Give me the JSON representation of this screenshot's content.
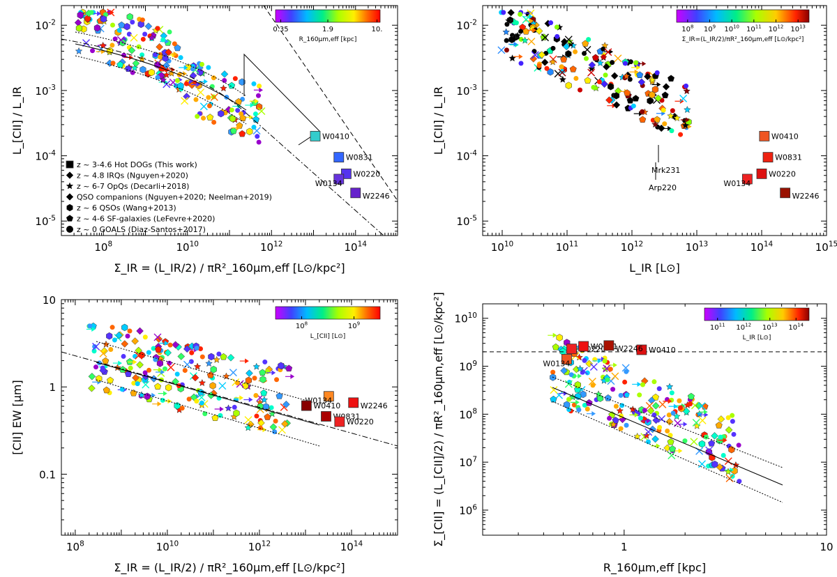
{
  "chart_data": [
    {
      "type": "scatter",
      "panel": "top-left",
      "xlabel": "Σ_IR = (L_IR/2) / πR²_160μm,eff [L⊙/kpc²]",
      "ylabel": "L_[CII] / L_IR",
      "xscale": "log",
      "yscale": "log",
      "xlim": [
        10000000.0,
        1000000000000000.0
      ],
      "ylim": [
        6e-06,
        0.02
      ],
      "xticks": [
        "10^8",
        "10^10",
        "10^12",
        "10^14"
      ],
      "yticks": [
        "10^-5",
        "10^-4",
        "10^-3",
        "10^-2"
      ],
      "colorbar": {
        "label": "R_160μm,eff [kpc]",
        "ticks": [
          "0.35",
          "1.9",
          "10."
        ]
      },
      "legend": [
        {
          "symbol": "square",
          "label": "z ~ 3-4.6 Hot DOGs (This work)"
        },
        {
          "symbol": "diamond",
          "label": "z ~ 4.8 IRQs (Nguyen+2020)"
        },
        {
          "symbol": "star",
          "label": "z ~ 6-7 OpQs (Decarli+2018)"
        },
        {
          "symbol": "open-diamond-star",
          "label": "QSO companions (Nguyen+2020; Neelman+2019)"
        },
        {
          "symbol": "hexagon",
          "label": "z ~ 6 QSOs (Wang+2013)"
        },
        {
          "symbol": "pentagon",
          "label": "z ~ 4-6 SF-galaxies (LeFevre+2020)"
        },
        {
          "symbol": "circle",
          "label": "z ~ 0 GOALS (Diaz-Santos+2017)"
        }
      ],
      "hot_dogs": [
        {
          "name": "W0410",
          "x": 11000000000000.0,
          "y": 0.0002,
          "color": "#33cccc"
        },
        {
          "name": "W0831",
          "x": 40000000000000.0,
          "y": 9.5e-05,
          "color": "#3366ff"
        },
        {
          "name": "W0220",
          "x": 60000000000000.0,
          "y": 5.3e-05,
          "color": "#5533ee"
        },
        {
          "name": "W0134",
          "x": 40000000000000.0,
          "y": 4.4e-05,
          "color": "#6633dd"
        },
        {
          "name": "W2246",
          "x": 100000000000000.0,
          "y": 2.7e-05,
          "color": "#6622cc"
        }
      ]
    },
    {
      "type": "scatter",
      "panel": "top-right",
      "xlabel": "L_IR [L⊙]",
      "ylabel": "L_[CII] / L_IR",
      "xscale": "log",
      "yscale": "log",
      "xlim": [
        5000000000.0,
        1000000000000000.0
      ],
      "ylim": [
        6e-06,
        0.02
      ],
      "xticks": [
        "10^10",
        "10^11",
        "10^12",
        "10^13",
        "10^14",
        "10^15"
      ],
      "yticks": [
        "10^-5",
        "10^-4",
        "10^-3",
        "10^-2"
      ],
      "colorbar": {
        "label": "Σ_IR=(L_IR/2)/πR²_160μm,eff [L⊙/kpc²]",
        "ticks": [
          "10^8",
          "10^9",
          "10^10",
          "10^11",
          "10^12",
          "10^13"
        ]
      },
      "annotations": [
        "Mrk231",
        "Arp220"
      ],
      "hot_dogs": [
        {
          "name": "W0410",
          "x": 110000000000000.0,
          "y": 0.0002,
          "color": "#ee5522"
        },
        {
          "name": "W0831",
          "x": 125000000000000.0,
          "y": 9.5e-05,
          "color": "#ee2211"
        },
        {
          "name": "W0220",
          "x": 100000000000000.0,
          "y": 5.3e-05,
          "color": "#dd1111"
        },
        {
          "name": "W0134",
          "x": 60000000000000.0,
          "y": 4.4e-05,
          "color": "#ee2222"
        },
        {
          "name": "W2246",
          "x": 230000000000000.0,
          "y": 2.7e-05,
          "color": "#991100"
        }
      ]
    },
    {
      "type": "scatter",
      "panel": "bottom-left",
      "xlabel": "Σ_IR = (L_IR/2) / πR²_160μm,eff [L⊙/kpc²]",
      "ylabel": "[CII] EW [μm]",
      "xscale": "log",
      "yscale": "log",
      "xlim": [
        50000000.0,
        1000000000000000.0
      ],
      "ylim": [
        0.02,
        10
      ],
      "xticks": [
        "10^8",
        "10^10",
        "10^12",
        "10^14"
      ],
      "yticks": [
        "0.1",
        "1",
        "10"
      ],
      "colorbar": {
        "label": "L_[CII] [L⊙]",
        "ticks": [
          "10^8",
          "10^9"
        ]
      },
      "hot_dogs": [
        {
          "name": "W0134",
          "x": 32000000000000.0,
          "y": 0.78,
          "color": "#ff8822"
        },
        {
          "name": "W2246",
          "x": 110000000000000.0,
          "y": 0.66,
          "color": "#ee1111"
        },
        {
          "name": "W0410",
          "x": 10500000000000.0,
          "y": 0.61,
          "color": "#880000"
        },
        {
          "name": "W0831",
          "x": 28000000000000.0,
          "y": 0.46,
          "color": "#aa0000"
        },
        {
          "name": "W0220",
          "x": 55000000000000.0,
          "y": 0.4,
          "color": "#ee2222"
        }
      ]
    },
    {
      "type": "scatter",
      "panel": "bottom-right",
      "xlabel": "R_160μm,eff [kpc]",
      "ylabel": "Σ_[CII] = (L_[CII]/2) / πR²_160μm,eff [L⊙/kpc²]",
      "xscale": "log",
      "yscale": "log",
      "xlim": [
        0.2,
        10
      ],
      "ylim": [
        300000.0,
        20000000000.0
      ],
      "xticks": [
        "1",
        "10"
      ],
      "yticks": [
        "10^6",
        "10^7",
        "10^8",
        "10^9",
        "10^10"
      ],
      "colorbar": {
        "label": "L_IR [L⊙]",
        "ticks": [
          "10^11",
          "10^12",
          "10^13",
          "10^14"
        ]
      },
      "hline_y": 2000000000.0,
      "hot_dogs": [
        {
          "name": "W0220",
          "x": 0.55,
          "y": 2300000000.0,
          "color": "#ee2222"
        },
        {
          "name": "W0831",
          "x": 0.63,
          "y": 2600000000.0,
          "color": "#ee1111"
        },
        {
          "name": "W0410",
          "x": 1.22,
          "y": 2200000000.0,
          "color": "#dd1111"
        },
        {
          "name": "W0134",
          "x": 0.52,
          "y": 1400000000.0,
          "color": "#ee5522"
        },
        {
          "name": "W2246",
          "x": 0.84,
          "y": 2700000000.0,
          "color": "#aa1100"
        }
      ]
    }
  ]
}
